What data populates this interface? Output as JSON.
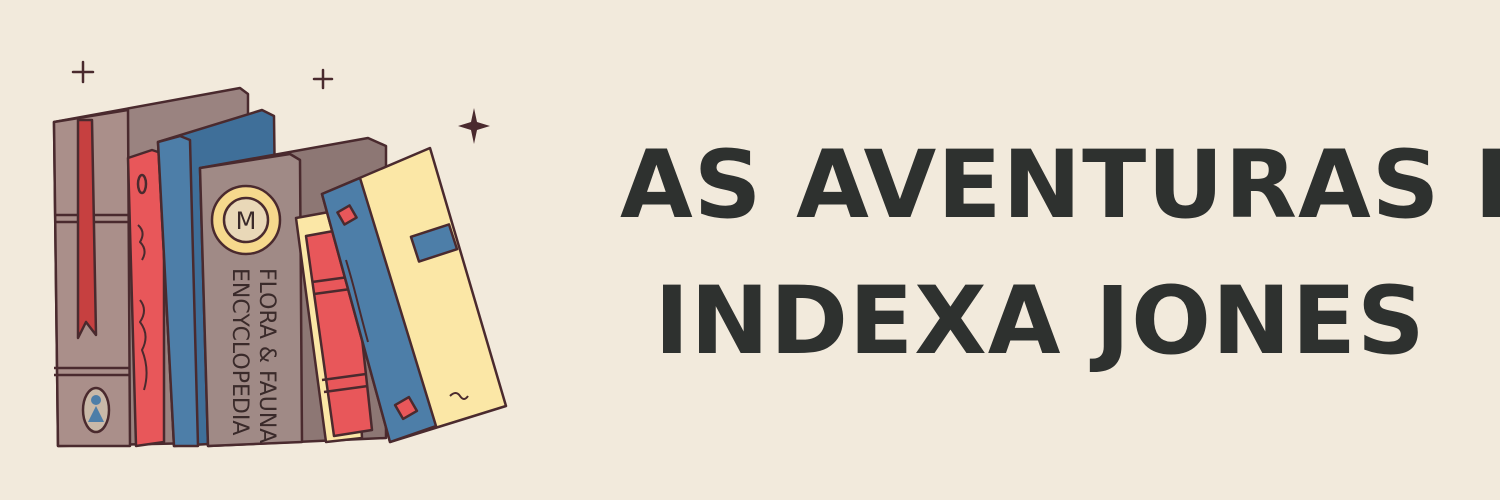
{
  "banner": {
    "title_line1": "AS AVENTURAS DE",
    "title_line2": "INDEXA JONES",
    "colors": {
      "background": "#f2eadc",
      "title": "#2e312f",
      "outline": "#4a2a2e",
      "book_grey": "#aa8f8a",
      "book_red": "#e8575a",
      "book_blue": "#4d7ea8",
      "book_taupe": "#a08a86",
      "book_cream": "#fbe7a6",
      "ribbon_red": "#c64040"
    }
  },
  "illustration": {
    "encyclopedia_line1": "FLORA & FAUNA",
    "encyclopedia_line2": "ENCYCLOPEDIA",
    "emblem_letter": "M"
  }
}
